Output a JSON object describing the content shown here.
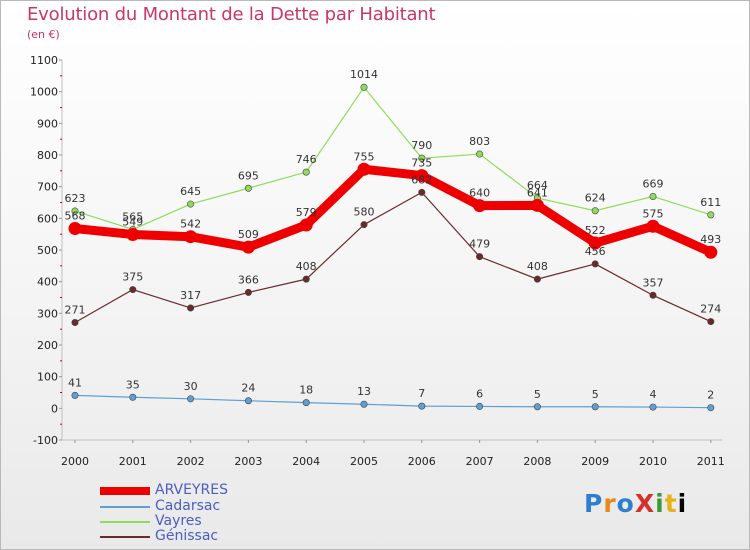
{
  "title": "Evolution du Montant de la Dette par Habitant",
  "subtitle": "(en €)",
  "logo": "ProXiti",
  "chart_data": {
    "type": "line",
    "x": [
      "2000",
      "2001",
      "2002",
      "2003",
      "2004",
      "2005",
      "2006",
      "2007",
      "2008",
      "2009",
      "2010",
      "2011"
    ],
    "ylim": [
      -100,
      1100
    ],
    "yticks": [
      -100,
      0,
      100,
      200,
      300,
      400,
      500,
      600,
      700,
      800,
      900,
      1000,
      1100
    ],
    "grid": false,
    "legend_position": "bottom-left",
    "series": [
      {
        "name": "ARVEYRES",
        "color": "#ee0000",
        "values": [
          568,
          549,
          542,
          509,
          579,
          755,
          735,
          640,
          641,
          522,
          575,
          493
        ]
      },
      {
        "name": "Cadarsac",
        "color": "#5f9fd4",
        "values": [
          41,
          35,
          30,
          24,
          18,
          13,
          7,
          6,
          5,
          5,
          4,
          2
        ]
      },
      {
        "name": "Vayres",
        "color": "#8fdc5a",
        "values": [
          623,
          565,
          645,
          695,
          746,
          1014,
          790,
          803,
          664,
          624,
          669,
          611
        ]
      },
      {
        "name": "Génissac",
        "color": "#6b2a2a",
        "values": [
          271,
          375,
          317,
          366,
          408,
          580,
          682,
          479,
          408,
          456,
          357,
          274
        ]
      }
    ]
  }
}
